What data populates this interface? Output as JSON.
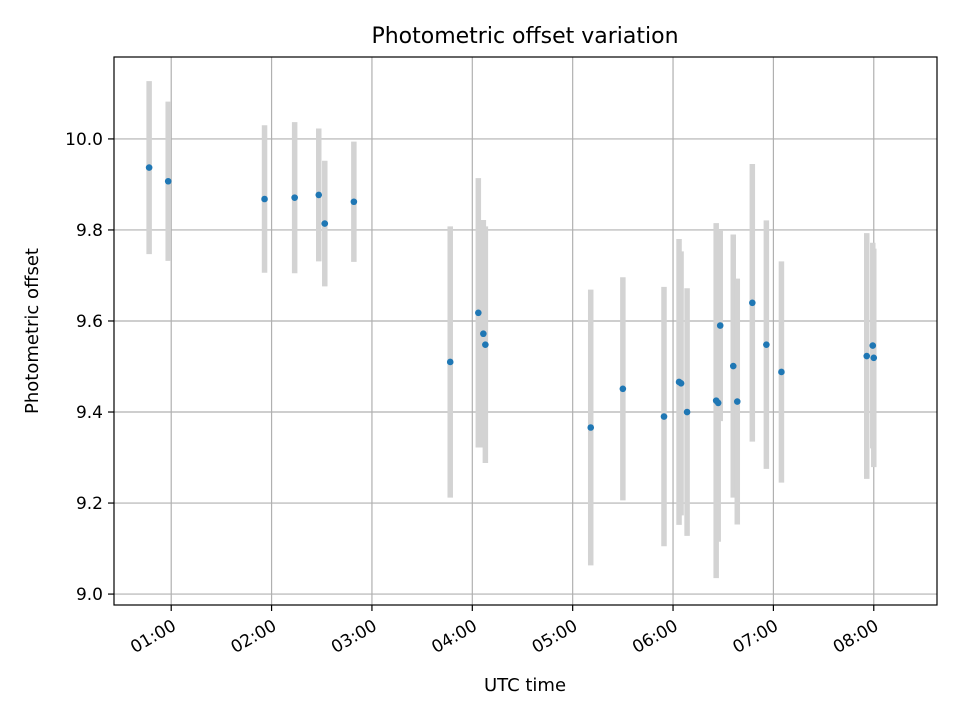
{
  "chart_data": {
    "type": "scatter",
    "title": "Photometric offset variation",
    "xlabel": "UTC time",
    "ylabel": "Photometric offset",
    "x_unit": "hours (UTC)",
    "xlim": [
      0.43,
      8.63
    ],
    "ylim": [
      8.976,
      10.18
    ],
    "grid": true,
    "legend": "none",
    "colors": {
      "marker": "#1f77b4",
      "errorbar": "#d3d3d3"
    },
    "x_ticks": [
      {
        "value": 1,
        "label": "01:00"
      },
      {
        "value": 2,
        "label": "02:00"
      },
      {
        "value": 3,
        "label": "03:00"
      },
      {
        "value": 4,
        "label": "04:00"
      },
      {
        "value": 5,
        "label": "05:00"
      },
      {
        "value": 6,
        "label": "06:00"
      },
      {
        "value": 7,
        "label": "07:00"
      },
      {
        "value": 8,
        "label": "08:00"
      }
    ],
    "y_ticks": [
      {
        "value": 9.0,
        "label": "9.0"
      },
      {
        "value": 9.2,
        "label": "9.2"
      },
      {
        "value": 9.4,
        "label": "9.4"
      },
      {
        "value": 9.6,
        "label": "9.6"
      },
      {
        "value": 9.8,
        "label": "9.8"
      },
      {
        "value": 10.0,
        "label": "10.0"
      }
    ],
    "points": [
      {
        "x": 0.78,
        "y": 9.937,
        "yerr": 0.19
      },
      {
        "x": 0.97,
        "y": 9.907,
        "yerr": 0.175
      },
      {
        "x": 1.93,
        "y": 9.868,
        "yerr": 0.162
      },
      {
        "x": 2.23,
        "y": 9.871,
        "yerr": 0.166
      },
      {
        "x": 2.47,
        "y": 9.877,
        "yerr": 0.146
      },
      {
        "x": 2.53,
        "y": 9.814,
        "yerr": 0.138
      },
      {
        "x": 2.82,
        "y": 9.862,
        "yerr": 0.132
      },
      {
        "x": 3.78,
        "y": 9.51,
        "yerr": 0.298
      },
      {
        "x": 4.06,
        "y": 9.618,
        "yerr": 0.296
      },
      {
        "x": 4.11,
        "y": 9.572,
        "yerr": 0.25
      },
      {
        "x": 4.13,
        "y": 9.548,
        "yerr": 0.26
      },
      {
        "x": 5.18,
        "y": 9.366,
        "yerr": 0.303
      },
      {
        "x": 5.5,
        "y": 9.451,
        "yerr": 0.245
      },
      {
        "x": 5.91,
        "y": 9.39,
        "yerr": 0.285
      },
      {
        "x": 6.06,
        "y": 9.466,
        "yerr": 0.314
      },
      {
        "x": 6.08,
        "y": 9.463,
        "yerr": 0.29
      },
      {
        "x": 6.14,
        "y": 9.4,
        "yerr": 0.272
      },
      {
        "x": 6.43,
        "y": 9.425,
        "yerr": 0.39
      },
      {
        "x": 6.45,
        "y": 9.42,
        "yerr": 0.305
      },
      {
        "x": 6.47,
        "y": 9.59,
        "yerr": 0.21
      },
      {
        "x": 6.6,
        "y": 9.501,
        "yerr": 0.289
      },
      {
        "x": 6.64,
        "y": 9.423,
        "yerr": 0.27
      },
      {
        "x": 6.79,
        "y": 9.64,
        "yerr": 0.305
      },
      {
        "x": 6.93,
        "y": 9.548,
        "yerr": 0.273
      },
      {
        "x": 7.08,
        "y": 9.488,
        "yerr": 0.243
      },
      {
        "x": 7.93,
        "y": 9.523,
        "yerr": 0.27
      },
      {
        "x": 7.99,
        "y": 9.546,
        "yerr": 0.226
      },
      {
        "x": 8.0,
        "y": 9.519,
        "yerr": 0.24
      }
    ]
  }
}
